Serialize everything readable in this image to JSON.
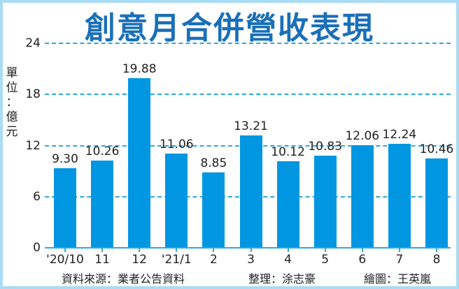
{
  "chart_data": {
    "type": "bar",
    "title": "創意月合併營收表現",
    "ylabel": "單位：億元",
    "xlabel": "",
    "ylim": [
      0,
      24
    ],
    "yticks": [
      0,
      6,
      12,
      18,
      24
    ],
    "grid": true,
    "categories": [
      "'20/10",
      "11",
      "12",
      "'21/1",
      "2",
      "3",
      "4",
      "5",
      "6",
      "7",
      "8"
    ],
    "values": [
      9.3,
      10.26,
      19.88,
      11.06,
      8.85,
      13.21,
      10.12,
      10.83,
      12.06,
      12.24,
      10.46
    ],
    "value_labels": [
      "9.30",
      "10.26",
      "19.88",
      "11.06",
      "8.85",
      "13.21",
      "10.12",
      "10.83",
      "12.06",
      "12.24",
      "10.46"
    ],
    "bar_color": "#0096e1",
    "grid_color": "#2fa8e0"
  },
  "title": "創意月合併營收表現",
  "unit_chars": [
    "單",
    "位",
    "：",
    "億",
    "元"
  ],
  "yticks": [
    "0",
    "6",
    "12",
    "18",
    "24"
  ],
  "footer": {
    "source": "資料來源：業者公告資料",
    "editor": "整理：涂志豪",
    "artist": "繪圖：王英嵐"
  }
}
